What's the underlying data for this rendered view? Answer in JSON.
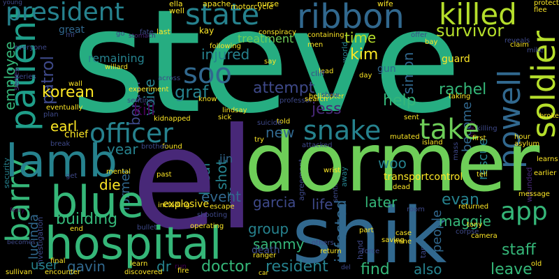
{
  "colors": {
    "background": "#000000",
    "palette": [
      "#440154",
      "#482878",
      "#3e4989",
      "#31688e",
      "#26828e",
      "#1f9e89",
      "#35b779",
      "#6ece58",
      "#b5de2b",
      "#fde725"
    ]
  },
  "words": [
    "steve",
    "el",
    "dormer",
    "shik",
    "hospital",
    "lamb",
    "blue",
    "president",
    "state",
    "ribbon",
    "killed",
    "soldier",
    "patient",
    "officer",
    "snake",
    "take",
    "powell",
    "app",
    "barry",
    "soo",
    "survivor",
    "kim",
    "border",
    "korean",
    "rachel",
    "simon",
    "voice",
    "patrol",
    "employee",
    "attempt",
    "jess",
    "graf",
    "help",
    "rescue",
    "become",
    "earl",
    "kill",
    "new",
    "woo",
    "year",
    "jin",
    "local",
    "event",
    "shot",
    "die",
    "former",
    "building",
    "garcia",
    "life",
    "later",
    "evan",
    "group",
    "sammy",
    "maggie",
    "people",
    "staff",
    "death",
    "infected",
    "doctor",
    "resident",
    "gavin",
    "dr",
    "user",
    "shoot",
    "find",
    "lucinda",
    "also",
    "leave",
    "time",
    "injured",
    "remaining",
    "great",
    "treatment",
    "kay",
    "gun",
    "guard",
    "chief",
    "explosive",
    "begin",
    "transportcontrol",
    "nurse",
    "wife",
    "ella",
    "apache",
    "well",
    "motorcycle",
    "young",
    "protect",
    "flee",
    "last",
    "fate",
    "stomach",
    "containing",
    "offer",
    "bay",
    "men",
    "lead",
    "say",
    "cliff",
    "claim",
    "reveals",
    "following",
    "conspiracy",
    "tech",
    "series",
    "willard",
    "wall",
    "experiment",
    "across",
    "know",
    "professor",
    "helicopter",
    "search",
    "taking",
    "lindsay",
    "kidnapped",
    "sick",
    "suicide",
    "told",
    "sent",
    "broken",
    "try",
    "attacked",
    "found",
    "brother",
    "break",
    "plan",
    "eventually",
    "security",
    "get",
    "mental",
    "past",
    "including",
    "escape",
    "shooting",
    "operating",
    "agreement",
    "ranger",
    "dead",
    "mutated",
    "island",
    "first",
    "hour",
    "asylum",
    "learns",
    "tell",
    "message",
    "earlier",
    "wounded",
    "returned",
    "tony",
    "camera",
    "corpse",
    "tape",
    "mine",
    "case",
    "part",
    "hand",
    "force",
    "saving",
    "return",
    "learn",
    "run",
    "fire",
    "final",
    "sullivan",
    "encounter",
    "discovered",
    "end",
    "ferry",
    "investigation",
    "bullet",
    "car",
    "del",
    "others",
    "away",
    "wrist",
    "room",
    "old",
    "world",
    "day",
    "show",
    "everyone",
    "mr",
    "lee",
    "go",
    "killing",
    "mike",
    "mass",
    "becomes",
    "sentinel"
  ]
}
